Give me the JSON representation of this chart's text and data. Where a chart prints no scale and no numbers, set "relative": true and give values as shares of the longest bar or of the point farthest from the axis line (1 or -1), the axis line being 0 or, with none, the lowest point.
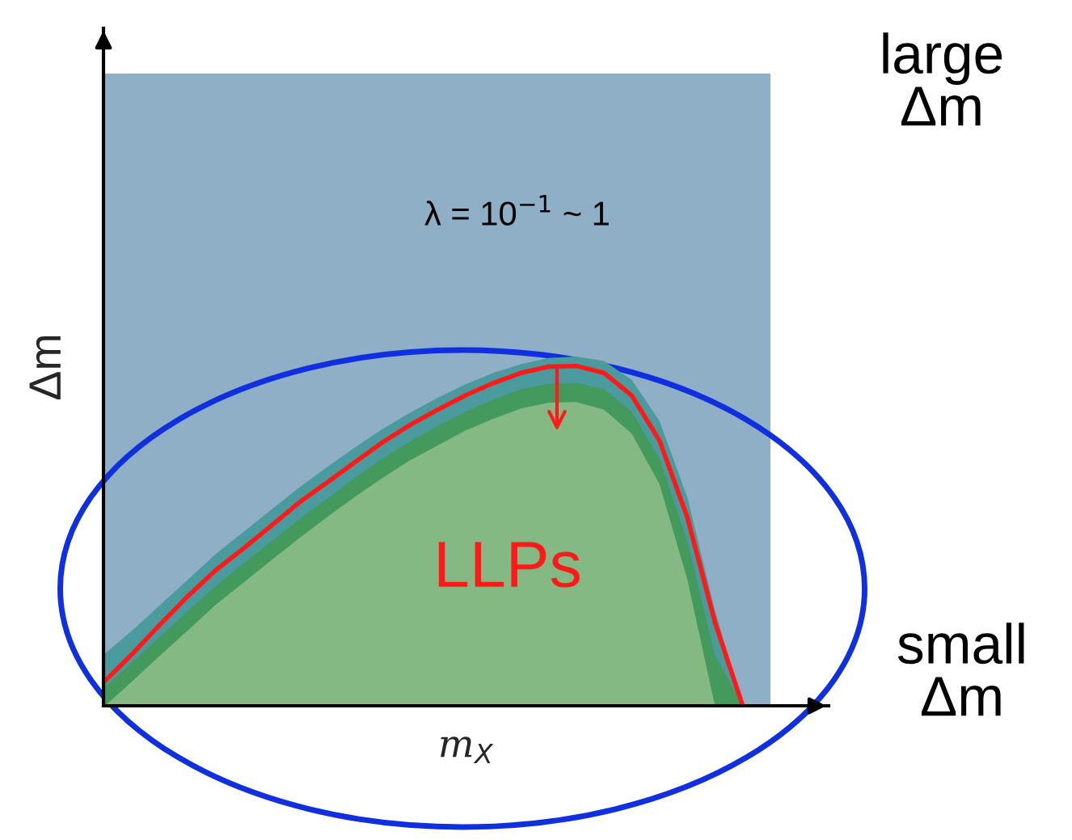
{
  "chart_data": {
    "type": "area",
    "relative": true,
    "legend": false,
    "categories": [
      null,
      null,
      null,
      null,
      null,
      null,
      null,
      null,
      null,
      null,
      null,
      null,
      null,
      null,
      null,
      null,
      null,
      null,
      null,
      null,
      null,
      null,
      null,
      null,
      null
    ],
    "xlabel": "m$_{X}$",
    "ylabel": "Δm",
    "annotations": [
      "λ = 10$^{−1}$ ~ 1",
      "LLPs",
      "large\nΔm",
      "small\nΔm"
    ],
    "series": [
      {
        "color": "#4a9a9e",
        "values": [
          0.15,
          0.217,
          0.29,
          0.362,
          0.435,
          0.498,
          0.562,
          0.625,
          0.683,
          0.739,
          0.792,
          0.839,
          0.882,
          0.92,
          0.953,
          0.978,
          0.996,
          1,
          0.987,
          0.933,
          0.815,
          0.598,
          0.272,
          0,
          null
        ]
      },
      {
        "color": "#449a5c",
        "values": [
          0.054,
          0.127,
          0.199,
          0.272,
          0.344,
          0.408,
          0.471,
          0.534,
          0.592,
          0.652,
          0.707,
          0.757,
          0.801,
          0.842,
          0.877,
          0.906,
          0.922,
          0.924,
          0.906,
          0.842,
          0.707,
          0.471,
          0.145,
          0,
          null
        ]
      },
      {
        "color": "#84b984",
        "values": [
          0,
          0.072,
          0.145,
          0.217,
          0.29,
          0.353,
          0.417,
          0.48,
          0.54,
          0.598,
          0.652,
          0.703,
          0.746,
          0.788,
          0.822,
          0.851,
          0.868,
          0.87,
          0.848,
          0.779,
          0.634,
          0.362,
          0,
          null,
          null
        ]
      },
      {
        "type": "line",
        "color": "#ff1a1a",
        "values": [
          0.072,
          0.15,
          0.234,
          0.315,
          0.389,
          0.451,
          0.516,
          0.582,
          0.639,
          0.697,
          0.754,
          0.804,
          0.848,
          0.889,
          0.924,
          0.953,
          0.971,
          0.973,
          0.953,
          0.888,
          0.759,
          0.54,
          0.239,
          0,
          null
        ]
      }
    ]
  }
}
